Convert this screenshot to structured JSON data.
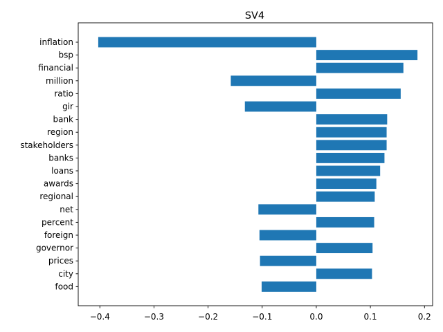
{
  "chart_data": {
    "type": "bar",
    "orientation": "horizontal",
    "title": "SV4",
    "xlabel": "",
    "ylabel": "",
    "xlim": [
      -0.44,
      0.215
    ],
    "xticks": [
      -0.4,
      -0.3,
      -0.2,
      -0.1,
      0.0,
      0.1,
      0.2
    ],
    "xtick_labels": [
      "−0.4",
      "−0.3",
      "−0.2",
      "−0.1",
      "0.0",
      "0.1",
      "0.2"
    ],
    "grid": false,
    "bar_color": "#1f77b4",
    "categories": [
      "inflation",
      "bsp",
      "financial",
      "million",
      "ratio",
      "gir",
      "bank",
      "region",
      "stakeholders",
      "banks",
      "loans",
      "awards",
      "regional",
      "net",
      "percent",
      "foreign",
      "governor",
      "prices",
      "city",
      "food"
    ],
    "values": [
      -0.403,
      0.187,
      0.161,
      -0.158,
      0.156,
      -0.132,
      0.131,
      0.13,
      0.13,
      0.126,
      0.118,
      0.111,
      0.108,
      -0.107,
      0.107,
      -0.105,
      0.104,
      -0.104,
      0.103,
      -0.101
    ]
  }
}
